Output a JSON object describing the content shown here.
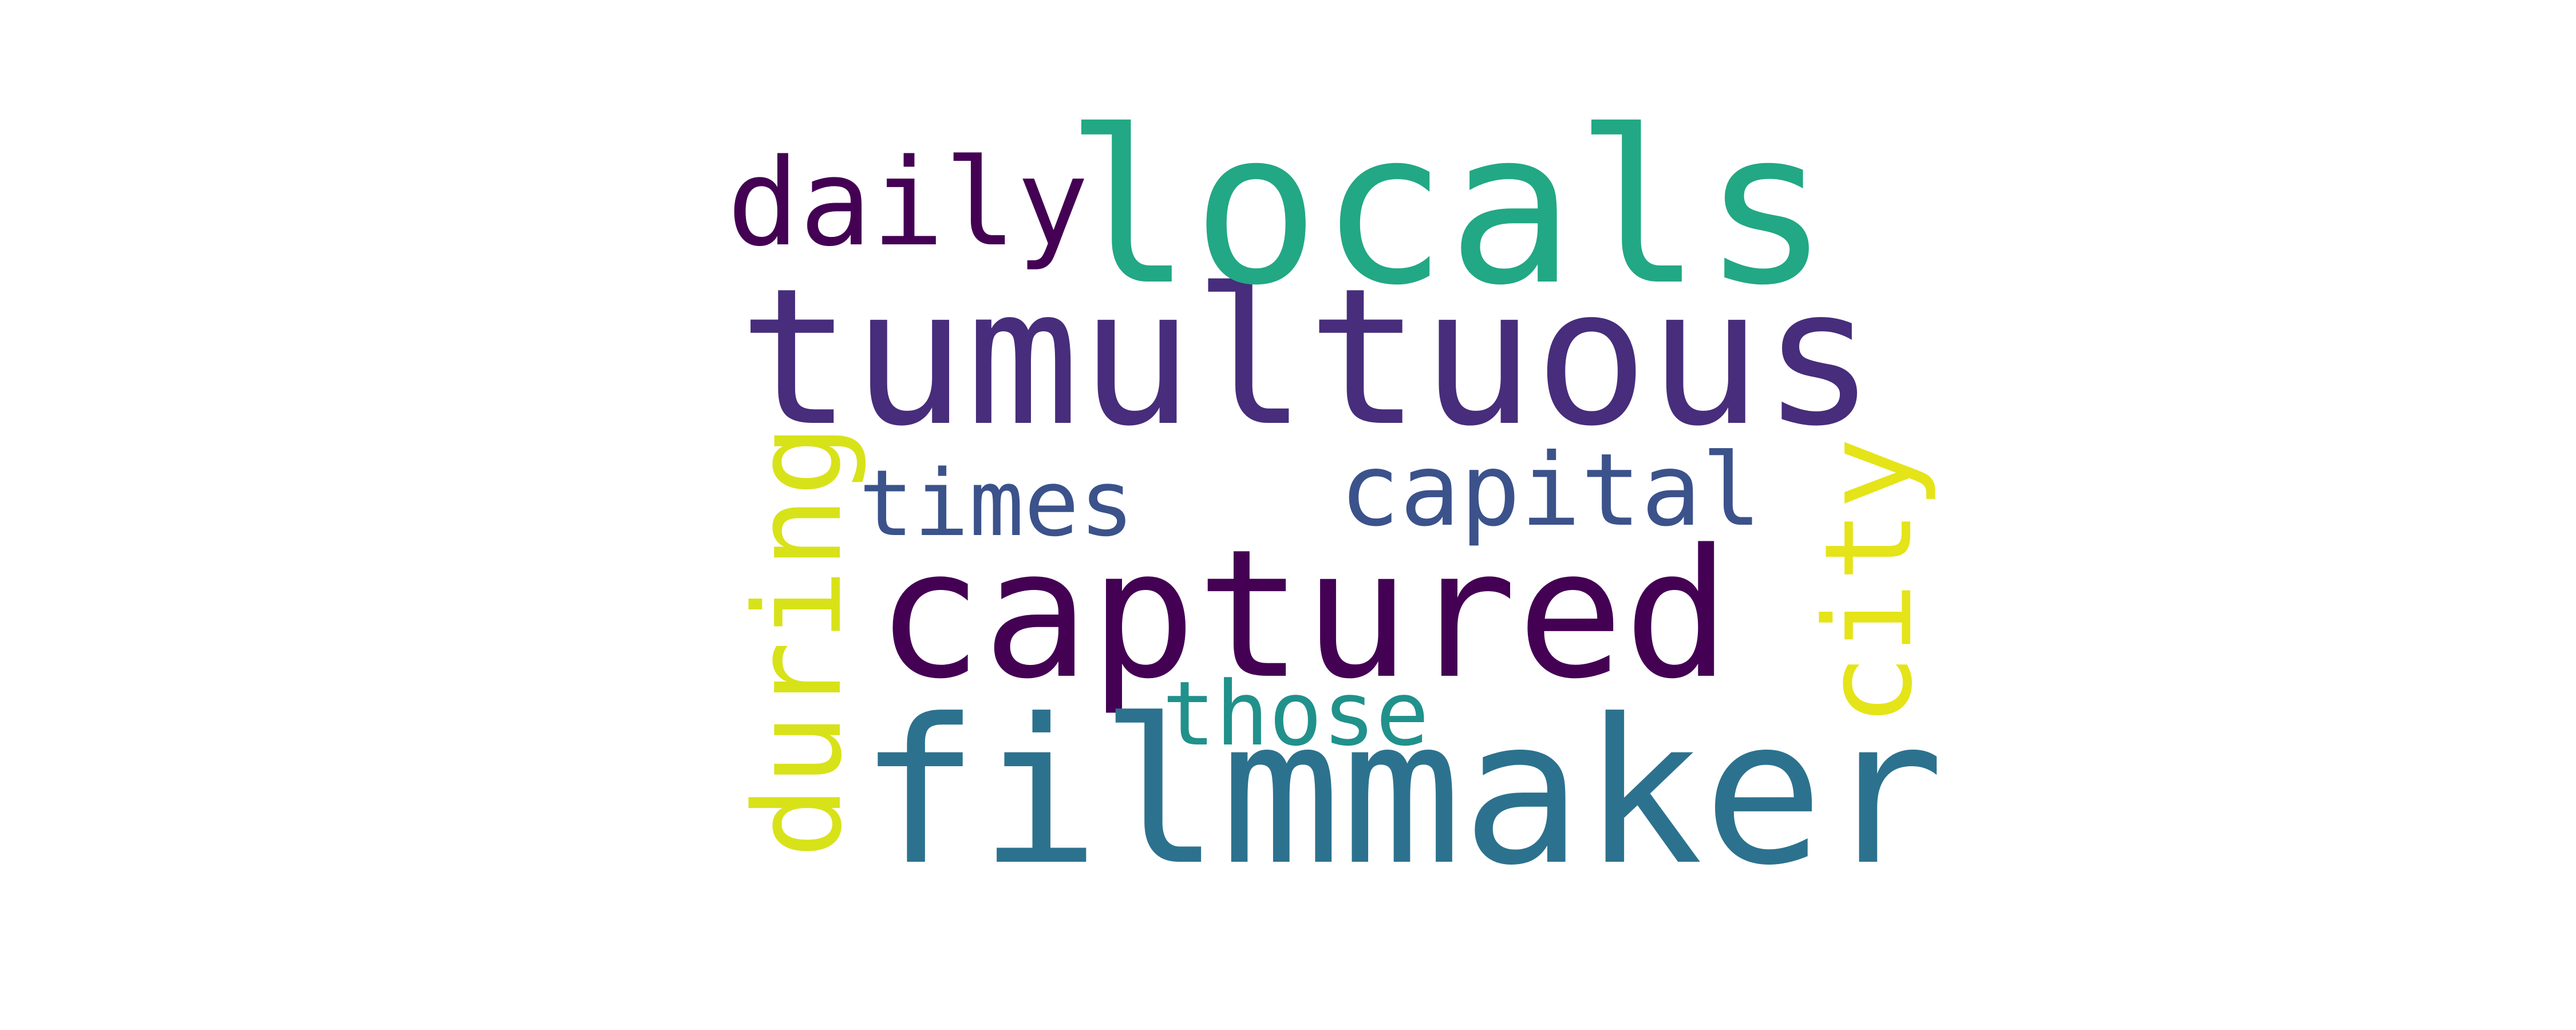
{
  "wordcloud": {
    "words": [
      {
        "text": "tumultuous",
        "color": "#472d7b"
      },
      {
        "text": "captured",
        "color": "#440154"
      },
      {
        "text": "filmmaker",
        "color": "#2c728e"
      },
      {
        "text": "locals",
        "color": "#22a884"
      },
      {
        "text": "daily",
        "color": "#440154"
      },
      {
        "text": "capital",
        "color": "#3b528b"
      },
      {
        "text": "times",
        "color": "#3b528b"
      },
      {
        "text": "those",
        "color": "#21918c"
      },
      {
        "text": "during",
        "color": "#d8e219"
      },
      {
        "text": "city",
        "color": "#e5e419"
      }
    ]
  }
}
